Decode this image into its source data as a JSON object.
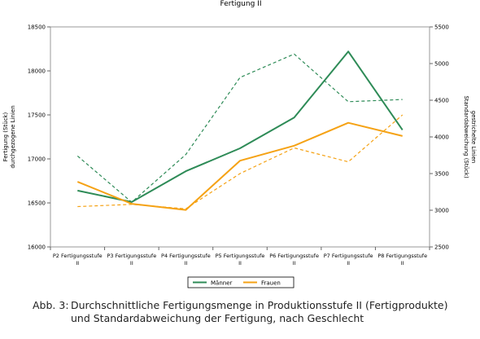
{
  "chart_data": {
    "type": "line",
    "title": "Fertigung II",
    "ylabel_left_line1": "Fertigung (Stück)",
    "ylabel_left_line2": "durchgezogene Linien",
    "ylabel_right_line1": "Standardabweichung (Stück)",
    "ylabel_right_line2": "gestrichelte Linien",
    "ylim_left": [
      16000,
      18500
    ],
    "ylim_right": [
      2500,
      5500
    ],
    "yticks_left": [
      16000,
      16500,
      17000,
      17500,
      18000,
      18500
    ],
    "yticks_right": [
      2500,
      3000,
      3500,
      4000,
      4500,
      5000,
      5500
    ],
    "categories": [
      [
        "P2 Fertigungsstufe",
        "II"
      ],
      [
        "P3 Fertigungsstufe",
        "II"
      ],
      [
        "P4 Fertigungsstufe",
        "II"
      ],
      [
        "P5 Fertigungsstufe",
        "II"
      ],
      [
        "P6 Fertigungsstufe",
        "II"
      ],
      [
        "P7 Fertigungsstufe",
        "II"
      ],
      [
        "P8 Fertigungsstufe",
        "II"
      ]
    ],
    "grid": false,
    "legend_position": "bottom",
    "series": [
      {
        "name": "Männer",
        "color": "#2e8b57",
        "axis": "left",
        "dash": false,
        "values": [
          16640,
          16510,
          16860,
          17120,
          17470,
          18220,
          17330
        ]
      },
      {
        "name": "Frauen",
        "color": "#f5a214",
        "axis": "left",
        "dash": false,
        "values": [
          16740,
          16490,
          16420,
          16980,
          17150,
          17410,
          17260
        ]
      },
      {
        "name": "",
        "color": "#2e8b57",
        "axis": "right",
        "dash": true,
        "values": [
          3740,
          3110,
          3760,
          4810,
          5130,
          4480,
          4510
        ]
      },
      {
        "name": "",
        "color": "#f5a214",
        "axis": "right",
        "dash": true,
        "values": [
          3050,
          3080,
          3020,
          3500,
          3850,
          3660,
          4300
        ]
      }
    ]
  },
  "caption": {
    "label": "Abb. 3:",
    "text": "Durchschnittliche Fertigungsmenge in Produktionsstufe II (Fertigprodukte) und Standardabweichung der Fertigung, nach Geschlecht"
  }
}
